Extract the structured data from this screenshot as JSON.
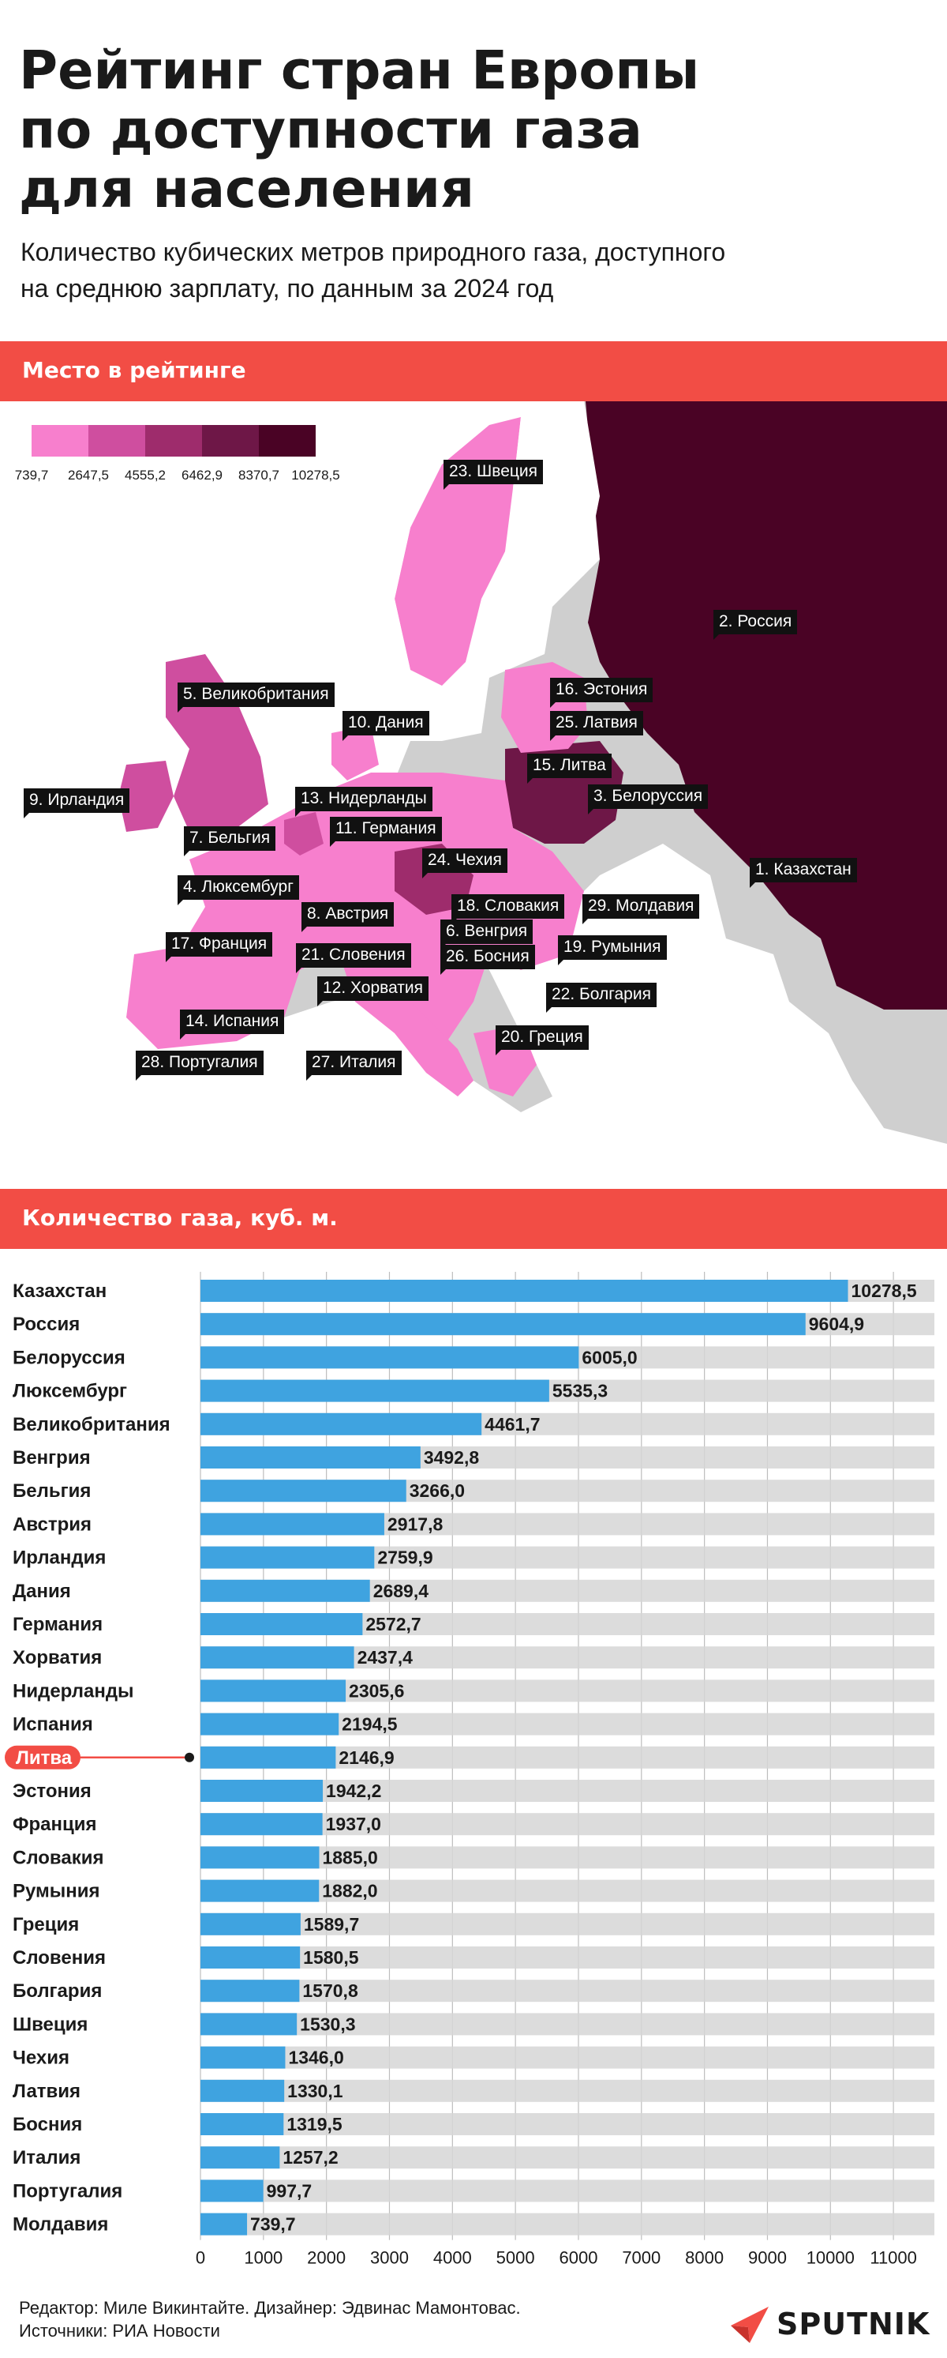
{
  "header": {
    "title_line1": "Рейтинг стран Европы",
    "title_line2": "по доступности газа",
    "title_line3": "для населения",
    "subtitle_line1": "Количество кубических метров природного газа, доступного",
    "subtitle_line2": "на среднюю зарплату, по данным за 2024 год"
  },
  "sections": {
    "map_heading": "Место в рейтинге",
    "bars_heading": "Количество газа, куб. м."
  },
  "legend": {
    "ticks": [
      "739,7",
      "2647,5",
      "4555,2",
      "6462,9",
      "8370,7",
      "10278,5"
    ],
    "colors": [
      "#f77fcd",
      "#cf4e9f",
      "#9e2c6c",
      "#6e1747",
      "#4a0325"
    ]
  },
  "map_labels": [
    "23. Швеция",
    "2. Россия",
    "5. Великобритания",
    "16. Эстония",
    "10. Дания",
    "25. Латвия",
    "15. Литва",
    "9. Ирландия",
    "13. Нидерланды",
    "3. Белоруссия",
    "11. Германия",
    "7. Бельгия",
    "24. Чехия",
    "1. Казахстан",
    "4. Люксембург",
    "8. Австрия",
    "18. Словакия",
    "29. Молдавия",
    "6. Венгрия",
    "17. Франция",
    "21. Словения",
    "26. Босния",
    "19. Румыния",
    "12. Хорватия",
    "22. Болгария",
    "14. Испания",
    "20. Греция",
    "28. Португалия",
    "27. Италия"
  ],
  "chart_data": {
    "type": "bar",
    "orientation": "horizontal",
    "title": "Количество газа, куб. м.",
    "categories": [
      "Казахстан",
      "Россия",
      "Белоруссия",
      "Люксембург",
      "Великобритания",
      "Венгрия",
      "Бельгия",
      "Австрия",
      "Ирландия",
      "Дания",
      "Германия",
      "Хорватия",
      "Нидерланды",
      "Испания",
      "Литва",
      "Эстония",
      "Франция",
      "Словакия",
      "Румыния",
      "Греция",
      "Словения",
      "Болгария",
      "Швеция",
      "Чехия",
      "Латвия",
      "Босния",
      "Италия",
      "Португалия",
      "Молдавия"
    ],
    "values": [
      10278.5,
      9604.9,
      6005.0,
      5535.3,
      4461.7,
      3492.8,
      3266.0,
      2917.8,
      2759.9,
      2689.4,
      2572.7,
      2437.4,
      2305.6,
      2194.5,
      2146.9,
      1942.2,
      1937.0,
      1885.0,
      1882.0,
      1589.7,
      1580.5,
      1570.8,
      1530.3,
      1346.0,
      1330.1,
      1319.5,
      1257.2,
      997.7,
      739.7
    ],
    "value_labels": [
      "10278,5",
      "9604,9",
      "6005,0",
      "5535,3",
      "4461,7",
      "3492,8",
      "3266,0",
      "2917,8",
      "2759,9",
      "2689,4",
      "2572,7",
      "2437,4",
      "2305,6",
      "2194,5",
      "2146,9",
      "1942,2",
      "1937,0",
      "1885,0",
      "1882,0",
      "1589,7",
      "1580,5",
      "1570,8",
      "1530,3",
      "1346,0",
      "1330,1",
      "1319,5",
      "1257,2",
      "997,7",
      "739,7"
    ],
    "highlight": "Литва",
    "xlim": [
      0,
      11700
    ],
    "xticks": [
      0,
      1000,
      2000,
      3000,
      4000,
      5000,
      6000,
      7000,
      8000,
      9000,
      10000,
      11000
    ],
    "xtick_labels": [
      "0",
      "1000",
      "2000",
      "3000",
      "4000",
      "5000",
      "6000",
      "7000",
      "8000",
      "9000",
      "10000",
      "11000"
    ],
    "grid": true,
    "colors": {
      "bar": "#3fa3e0",
      "track": "#d6d6d6",
      "highlight": "#f24d45"
    }
  },
  "footer": {
    "credits_line1": "Редактор: Миле Викинтайте.  Дизайнер: Эдвинас Мамонтовас.",
    "credits_line2": "Источники: РИА Новости",
    "logo_text": "SPUTNIK"
  }
}
